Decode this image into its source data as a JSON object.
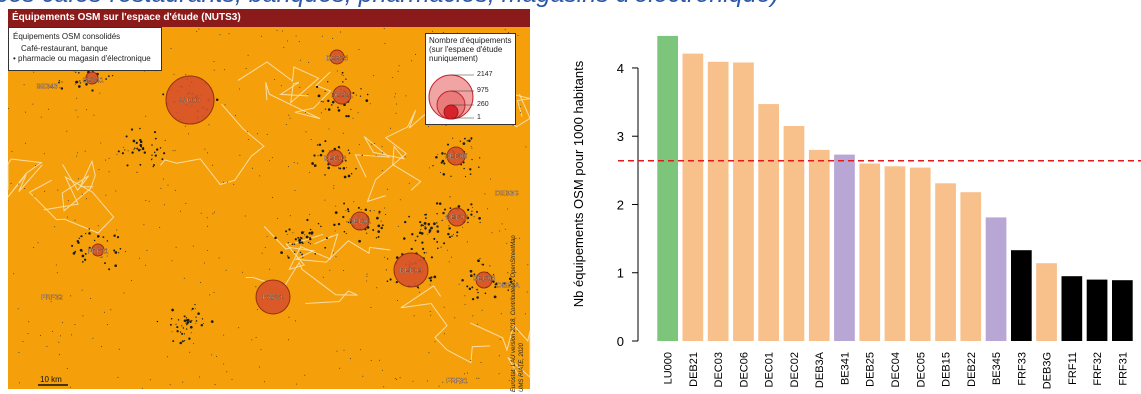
{
  "banner": {
    "text": "ces cafés-restaurants, banques, pharmacies, magasins d'électronique)"
  },
  "map": {
    "title": "Équipements OSM sur l'espace d'étude (NUTS3)",
    "legend_type": {
      "title": "Équipements OSM consolidés",
      "items": [
        "Café-restaurant, banque",
        "pharmacie ou magasin d'électronique"
      ]
    },
    "legend_size": {
      "title_lines": [
        "Nombre d'équipements",
        "(sur l'espace d'étude",
        "nuniquement)"
      ],
      "values": [
        "2147",
        "975",
        "260",
        "1"
      ]
    },
    "region_labels": [
      "LU000",
      "DEB21",
      "DEC03",
      "DEC06",
      "DEC01",
      "DEC02",
      "DEB3A",
      "BE341",
      "DEB25",
      "DEC04",
      "DEC05",
      "DEB15",
      "DEB22",
      "BE345",
      "FRF33",
      "DEB3G",
      "FRF11",
      "FRF32",
      "FRF31",
      "BE343"
    ],
    "scale_label": "10 km",
    "copyright_lines": [
      "Eurostat, LAU version 2018, Contributeurs OpenStreetMap",
      "UMS RIATE, 2020"
    ],
    "colors": {
      "land": "#f5a00a",
      "circle": "#d9532a",
      "title_bg": "#8b1a1a"
    }
  },
  "chart_data": {
    "type": "bar",
    "categories": [
      "LU000",
      "DEB21",
      "DEC03",
      "DEC06",
      "DEC01",
      "DEC02",
      "DEB3A",
      "BE341",
      "DEB25",
      "DEC04",
      "DEC05",
      "DEB15",
      "DEB22",
      "BE345",
      "FRF33",
      "DEB3G",
      "FRF11",
      "FRF32",
      "FRF31"
    ],
    "values": [
      4.47,
      4.21,
      4.09,
      4.08,
      3.47,
      3.15,
      2.8,
      2.73,
      2.6,
      2.56,
      2.54,
      2.31,
      2.18,
      1.81,
      1.33,
      1.14,
      0.95,
      0.9,
      0.89
    ],
    "bar_colors": [
      "#7dc57b",
      "#f8c08a",
      "#f8c08a",
      "#f8c08a",
      "#f8c08a",
      "#f8c08a",
      "#f8c08a",
      "#b8a6d4",
      "#f8c08a",
      "#f8c08a",
      "#f8c08a",
      "#f8c08a",
      "#f8c08a",
      "#b8a6d4",
      "#000000",
      "#f8c08a",
      "#000000",
      "#000000",
      "#000000"
    ],
    "ylabel": "Nb équipements OSM pour 1000 habitants",
    "ylim": [
      0,
      4.6
    ],
    "yticks": [
      "0",
      "1",
      "2",
      "3",
      "4"
    ],
    "reference_line": 2.64,
    "reference_color": "#e41a1c",
    "grid": false
  }
}
